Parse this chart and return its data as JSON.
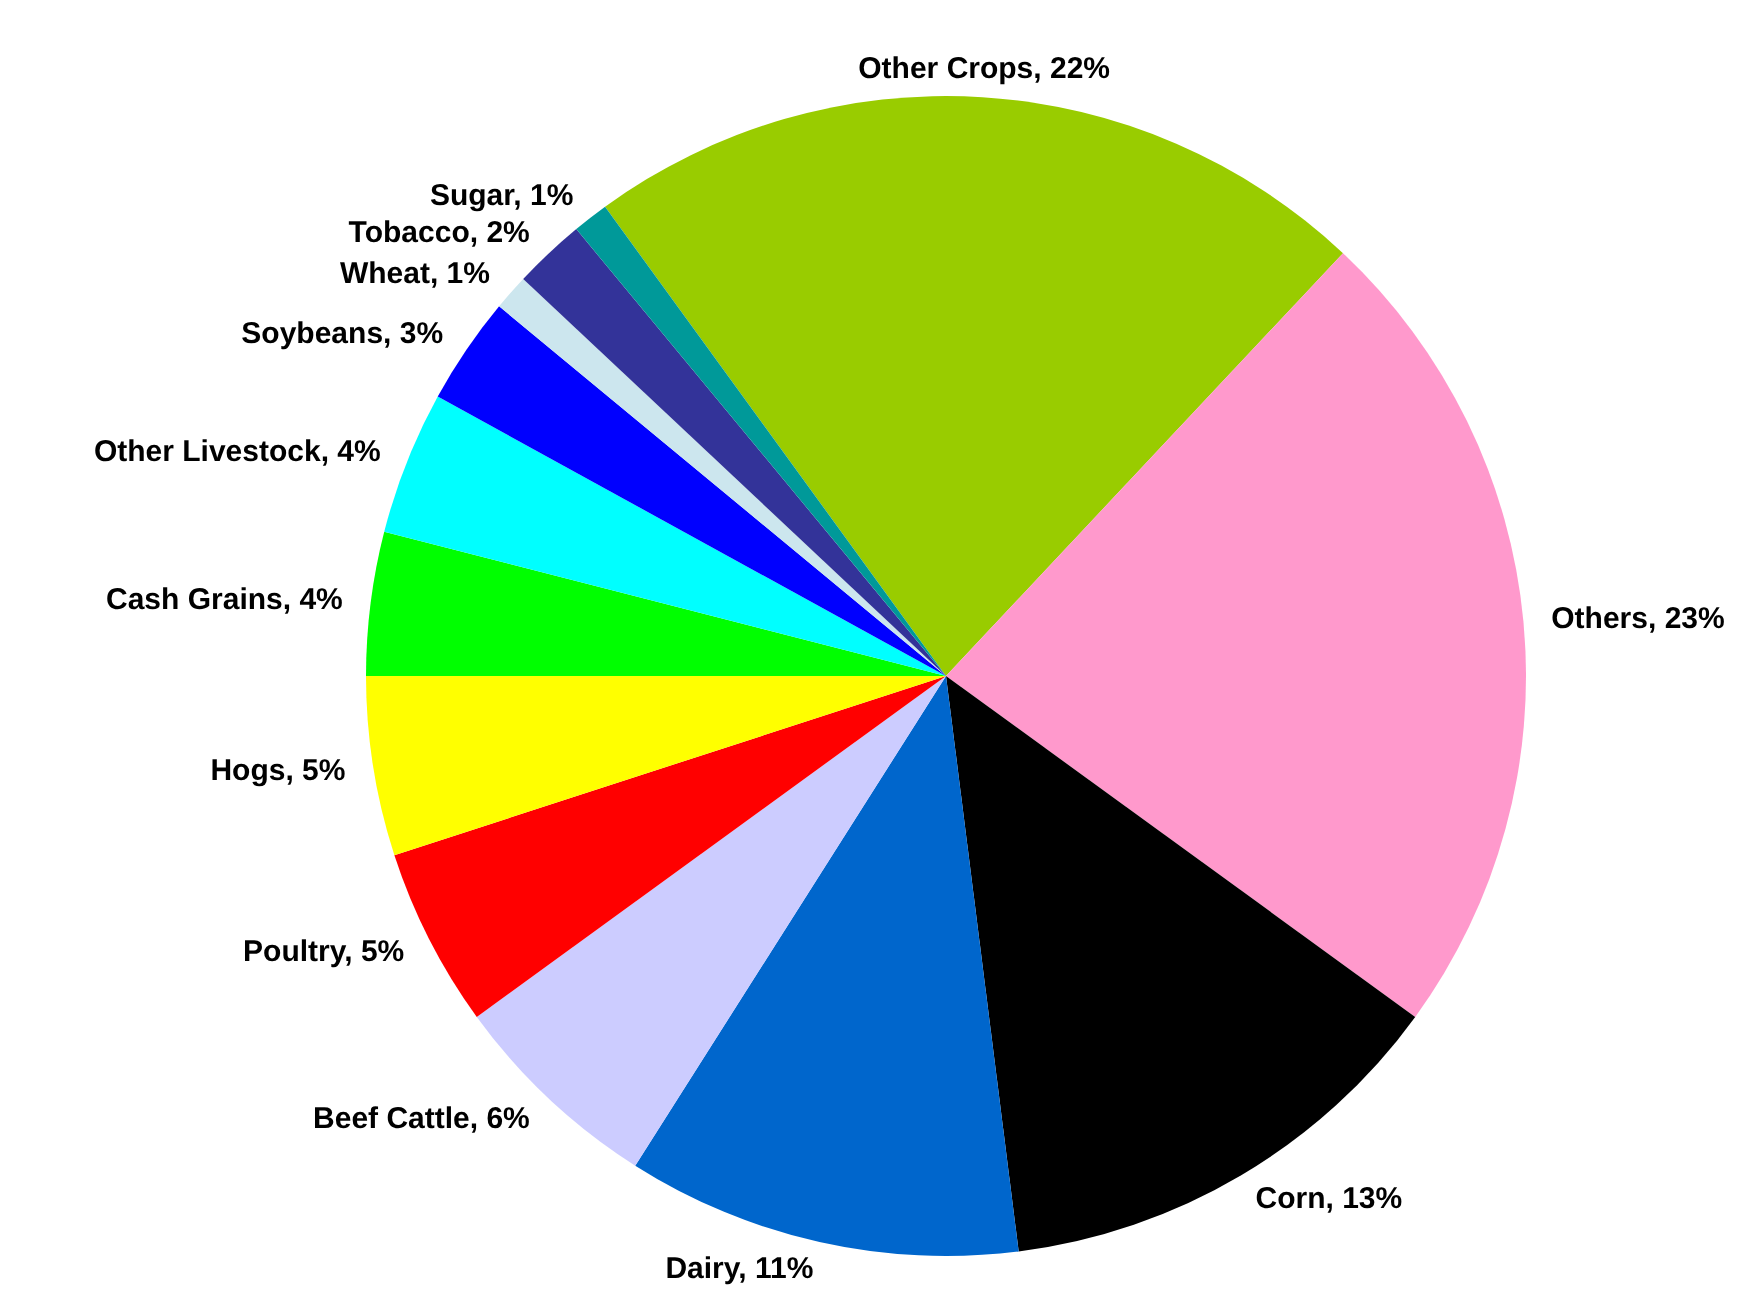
{
  "chart_data": {
    "type": "pie",
    "categories": [
      "Other Crops",
      "Others",
      "Corn",
      "Dairy",
      "Beef Cattle",
      "Poultry",
      "Hogs",
      "Cash Grains",
      "Other Livestock",
      "Soybeans",
      "Wheat",
      "Tobacco",
      "Sugar"
    ],
    "values": [
      22,
      23,
      13,
      11,
      6,
      5,
      5,
      4,
      4,
      3,
      1,
      2,
      1
    ],
    "value_labels": [
      "22%",
      "23%",
      "13%",
      "11%",
      "6%",
      "5%",
      "5%",
      "4%",
      "4%",
      "3%",
      "1%",
      "2%",
      "1%"
    ],
    "colors": [
      "#99cc00",
      "#ff99cc",
      "#000000",
      "#0066cc",
      "#ccccff",
      "#ff0000",
      "#ffff00",
      "#00ff00",
      "#00ffff",
      "#0000ff",
      "#cce6ee",
      "#333399",
      "#009999"
    ],
    "legend": false
  }
}
